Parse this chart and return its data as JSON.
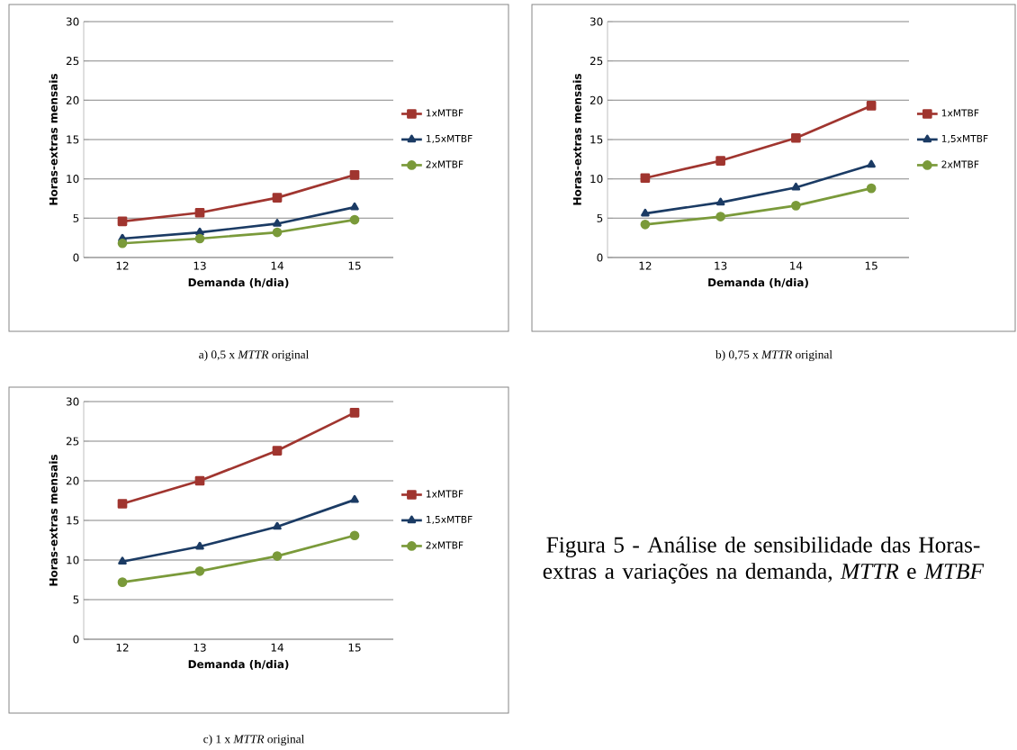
{
  "chart_data": [
    {
      "type": "line",
      "categories": [
        "12",
        "13",
        "14",
        "15"
      ],
      "xlabel": "Demanda (h/dia)",
      "ylabel": "Horas-extras mensais",
      "ylim": [
        0,
        30
      ],
      "yticks": [
        0,
        5,
        10,
        15,
        20,
        25,
        30
      ],
      "grid": "y",
      "legend": "right",
      "annotations": [
        "a) 0,5 x *MTTR* original"
      ],
      "series": [
        {
          "name": "1xMTBF",
          "color": "#a0352f",
          "marker": "square",
          "values": [
            4.6,
            5.7,
            7.6,
            10.5
          ]
        },
        {
          "name": "1,5xMTBF",
          "color": "#1b3b64",
          "marker": "triangle",
          "values": [
            2.4,
            3.2,
            4.3,
            6.4
          ]
        },
        {
          "name": "2xMTBF",
          "color": "#7a9a3a",
          "marker": "circle",
          "values": [
            1.8,
            2.4,
            3.2,
            4.8
          ]
        }
      ]
    },
    {
      "type": "line",
      "categories": [
        "12",
        "13",
        "14",
        "15"
      ],
      "xlabel": "Demanda (h/dia)",
      "ylabel": "Horas-extras mensais",
      "ylim": [
        0,
        30
      ],
      "yticks": [
        0,
        5,
        10,
        15,
        20,
        25,
        30
      ],
      "grid": "y",
      "legend": "right",
      "annotations": [
        "b) 0,75 x *MTTR* original"
      ],
      "series": [
        {
          "name": "1xMTBF",
          "color": "#a0352f",
          "marker": "square",
          "values": [
            10.1,
            12.3,
            15.2,
            19.3
          ]
        },
        {
          "name": "1,5xMTBF",
          "color": "#1b3b64",
          "marker": "triangle",
          "values": [
            5.6,
            7.0,
            8.9,
            11.8
          ]
        },
        {
          "name": "2xMTBF",
          "color": "#7a9a3a",
          "marker": "circle",
          "values": [
            4.2,
            5.2,
            6.6,
            8.8
          ]
        }
      ]
    },
    {
      "type": "line",
      "categories": [
        "12",
        "13",
        "14",
        "15"
      ],
      "xlabel": "Demanda (h/dia)",
      "ylabel": "Horas-extras mensais",
      "ylim": [
        0,
        30
      ],
      "yticks": [
        0,
        5,
        10,
        15,
        20,
        25,
        30
      ],
      "grid": "y",
      "legend": "right",
      "annotations": [
        "c) 1 x *MTTR* original"
      ],
      "series": [
        {
          "name": "1xMTBF",
          "color": "#a0352f",
          "marker": "square",
          "values": [
            17.1,
            20.0,
            23.8,
            28.6
          ]
        },
        {
          "name": "1,5xMTBF",
          "color": "#1b3b64",
          "marker": "triangle",
          "values": [
            9.8,
            11.7,
            14.2,
            17.6
          ]
        },
        {
          "name": "2xMTBF",
          "color": "#7a9a3a",
          "marker": "circle",
          "values": [
            7.2,
            8.6,
            10.5,
            13.1
          ]
        }
      ]
    },
    {
      "type": "other",
      "title": "Figura 5 - Análise de sensibilidade das Horas-extras a variações na demanda, *MTTR* e *MTBF*"
    }
  ]
}
